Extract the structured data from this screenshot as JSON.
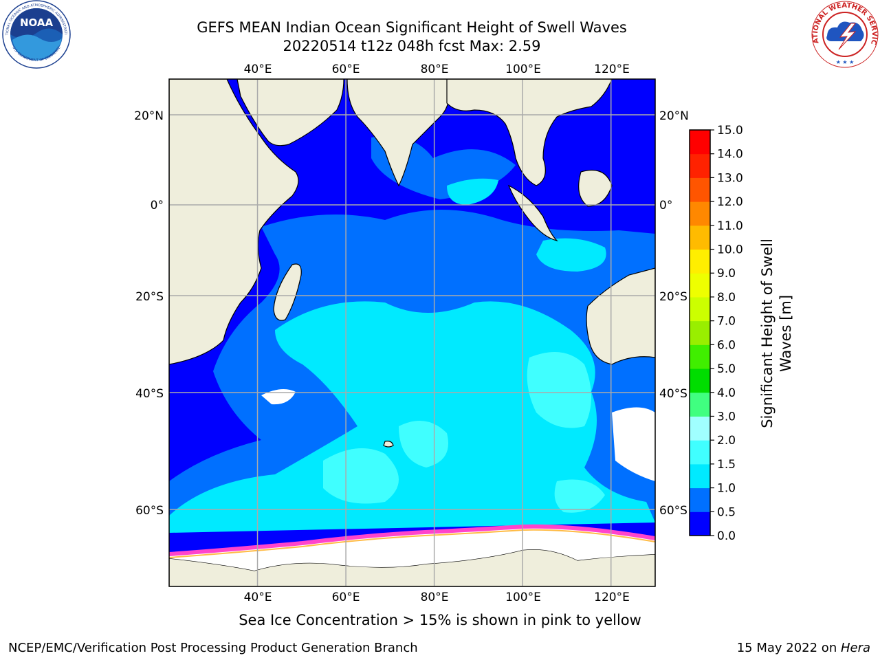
{
  "header": {
    "title_line1": "GEFS MEAN Indian Ocean Significant Height of Swell Waves",
    "title_line2": "20220514 t12z 048h fcst   Max: 2.59",
    "left_logo": "NOAA",
    "left_logo_ring_top": "NATIONAL OCEANIC AND ATMOSPHERIC ADMINISTRATION",
    "left_logo_ring_bottom": "U.S. DEPARTMENT OF COMMERCE",
    "right_logo_ring": "NATIONAL WEATHER SERVICE"
  },
  "map": {
    "region": "Indian Ocean",
    "lon_range": [
      20,
      130
    ],
    "lat_range": [
      -72,
      27
    ],
    "lon_ticks": [
      "40°E",
      "60°E",
      "80°E",
      "100°E",
      "120°E"
    ],
    "lat_ticks": [
      "20°N",
      "0°",
      "20°S",
      "40°S",
      "60°S"
    ],
    "gridlines": true,
    "colors": {
      "land": "#efeedc",
      "ice": "#ffffff",
      "ice_edge": "#ff44cc"
    }
  },
  "colorbar": {
    "label": "Significant Height of Swell Waves [m]",
    "label_line1": "Significant Height of Swell",
    "label_line2": "Waves [m]",
    "ticks": [
      "0.0",
      "0.5",
      "1.0",
      "1.5",
      "2.0",
      "3.0",
      "4.0",
      "5.0",
      "6.0",
      "7.0",
      "8.0",
      "9.0",
      "10.0",
      "11.0",
      "12.0",
      "13.0",
      "14.0",
      "15.0"
    ],
    "colors": [
      "#0000ff",
      "#0070ff",
      "#00eaff",
      "#40ffff",
      "#a0ffff",
      "#40ff80",
      "#00dd00",
      "#40ee00",
      "#99ee00",
      "#ccff00",
      "#eeff00",
      "#ffee00",
      "#ffbb00",
      "#ff8800",
      "#ff5500",
      "#ff2200",
      "#ff0000"
    ]
  },
  "footer": {
    "note": "Sea Ice Concentration > 15% is shown in pink to yellow",
    "left": "NCEP/EMC/Verification Post Processing Product Generation Branch",
    "right_date": "15 May 2022 on ",
    "right_host": "Hera"
  }
}
